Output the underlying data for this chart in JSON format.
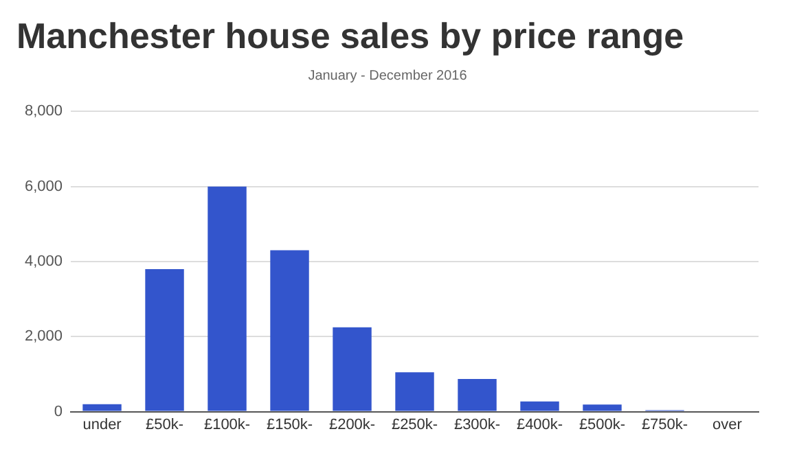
{
  "chart_data": {
    "type": "bar",
    "title": "Manchester house sales by price range",
    "subtitle": "January - December 2016",
    "categories": [
      "under",
      "£50k-",
      "£100k-",
      "£150k-",
      "£200k-",
      "£250k-",
      "£300k-",
      "£400k-",
      "£500k-",
      "£750k-",
      "over"
    ],
    "values": [
      200,
      3800,
      6000,
      4300,
      2250,
      1050,
      870,
      270,
      190,
      40,
      0
    ],
    "color": "#3355cc",
    "ylim": [
      0,
      8000
    ],
    "yticks": [
      {
        "value": 0,
        "label": "0"
      },
      {
        "value": 2000,
        "label": "2,000"
      },
      {
        "value": 4000,
        "label": "4,000"
      },
      {
        "value": 6000,
        "label": "6,000"
      },
      {
        "value": 8000,
        "label": "8,000"
      }
    ],
    "grid": "y",
    "legend": false
  }
}
